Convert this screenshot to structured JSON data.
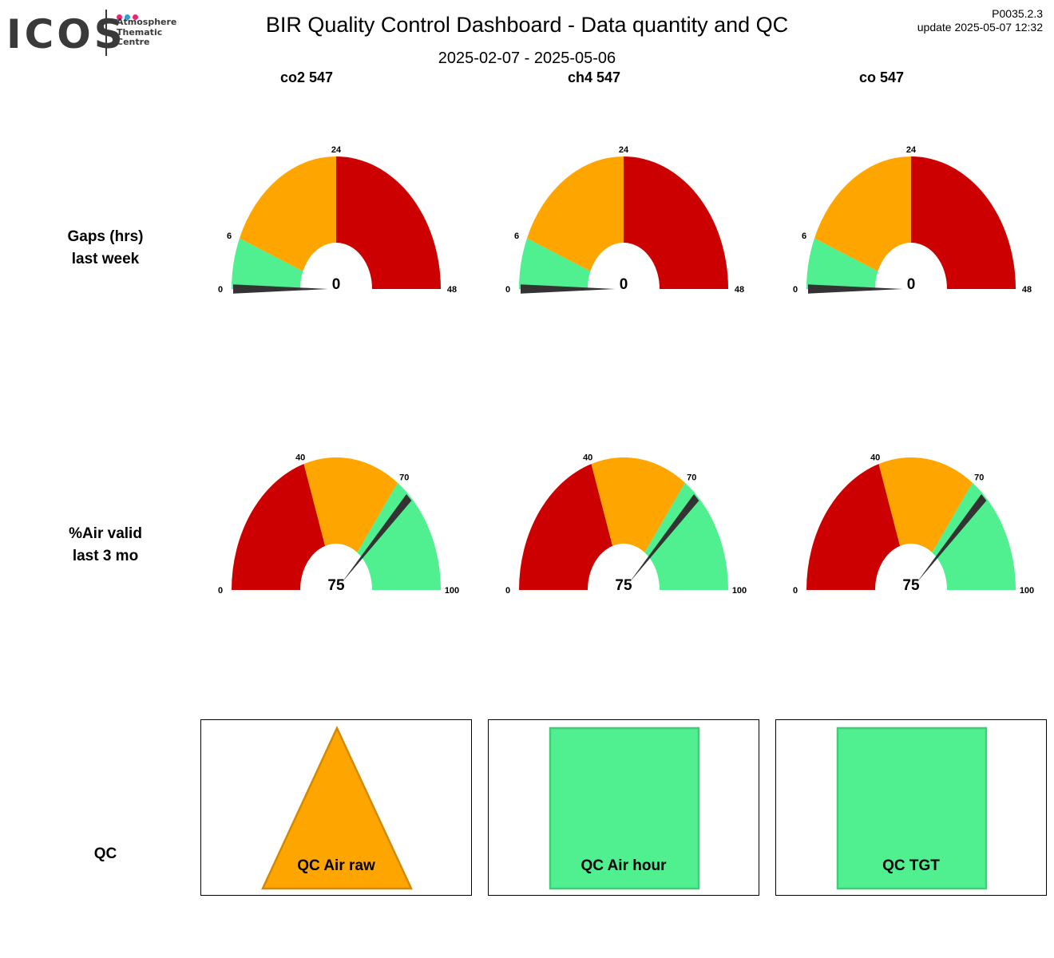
{
  "logo": {
    "word": "ICOS",
    "sub": [
      "Atmosphere",
      "Thematic",
      "Centre"
    ],
    "dot_colors": [
      "#e7287a",
      "#2f9ed9",
      "#e7287a"
    ]
  },
  "header": {
    "title": "BIR  Quality Control Dashboard - Data quantity and QC",
    "date_range": "2025-02-07 - 2025-05-06",
    "version": "P0035.2.3",
    "update": "update  2025-05-07 12:32"
  },
  "columns": [
    "co2 547",
    "ch4 547",
    "co 547"
  ],
  "rows": {
    "gaps": [
      "Gaps (hrs)",
      "last week"
    ],
    "air": [
      "%Air valid",
      "last 3 mo"
    ],
    "qc": "QC"
  },
  "colors": {
    "red": "#cc0000",
    "orange": "#ffa500",
    "green": "#50ef90",
    "needle": "#333333",
    "qc_orange_stroke": "#d48a00",
    "qc_green_stroke": "#3ccf78"
  },
  "chart_data": [
    {
      "type": "gauge",
      "row": "Gaps (hrs) last week",
      "column": "co2 547",
      "range": [
        0,
        48
      ],
      "ticks": [
        0,
        6,
        24,
        48
      ],
      "bands": [
        {
          "from": 0,
          "to": 6,
          "color": "green"
        },
        {
          "from": 6,
          "to": 24,
          "color": "orange"
        },
        {
          "from": 24,
          "to": 48,
          "color": "red"
        }
      ],
      "value": 0
    },
    {
      "type": "gauge",
      "row": "Gaps (hrs) last week",
      "column": "ch4 547",
      "range": [
        0,
        48
      ],
      "ticks": [
        0,
        6,
        24,
        48
      ],
      "bands": [
        {
          "from": 0,
          "to": 6,
          "color": "green"
        },
        {
          "from": 6,
          "to": 24,
          "color": "orange"
        },
        {
          "from": 24,
          "to": 48,
          "color": "red"
        }
      ],
      "value": 0
    },
    {
      "type": "gauge",
      "row": "Gaps (hrs) last week",
      "column": "co 547",
      "range": [
        0,
        48
      ],
      "ticks": [
        0,
        6,
        24,
        48
      ],
      "bands": [
        {
          "from": 0,
          "to": 6,
          "color": "green"
        },
        {
          "from": 6,
          "to": 24,
          "color": "orange"
        },
        {
          "from": 24,
          "to": 48,
          "color": "red"
        }
      ],
      "value": 0
    },
    {
      "type": "gauge",
      "row": "%Air valid last 3 mo",
      "column": "co2 547",
      "range": [
        0,
        100
      ],
      "ticks": [
        0,
        40,
        70,
        100
      ],
      "bands": [
        {
          "from": 0,
          "to": 40,
          "color": "red"
        },
        {
          "from": 40,
          "to": 70,
          "color": "orange"
        },
        {
          "from": 70,
          "to": 100,
          "color": "green"
        }
      ],
      "value": 75
    },
    {
      "type": "gauge",
      "row": "%Air valid last 3 mo",
      "column": "ch4 547",
      "range": [
        0,
        100
      ],
      "ticks": [
        0,
        40,
        70,
        100
      ],
      "bands": [
        {
          "from": 0,
          "to": 40,
          "color": "red"
        },
        {
          "from": 40,
          "to": 70,
          "color": "orange"
        },
        {
          "from": 70,
          "to": 100,
          "color": "green"
        }
      ],
      "value": 75
    },
    {
      "type": "gauge",
      "row": "%Air valid last 3 mo",
      "column": "co 547",
      "range": [
        0,
        100
      ],
      "ticks": [
        0,
        40,
        70,
        100
      ],
      "bands": [
        {
          "from": 0,
          "to": 40,
          "color": "red"
        },
        {
          "from": 40,
          "to": 70,
          "color": "orange"
        },
        {
          "from": 70,
          "to": 100,
          "color": "green"
        }
      ],
      "value": 75
    }
  ],
  "qc": [
    {
      "label": "QC Air raw",
      "shape": "triangle",
      "color": "orange"
    },
    {
      "label": "QC Air hour",
      "shape": "square",
      "color": "green"
    },
    {
      "label": "QC TGT",
      "shape": "square",
      "color": "green"
    }
  ]
}
